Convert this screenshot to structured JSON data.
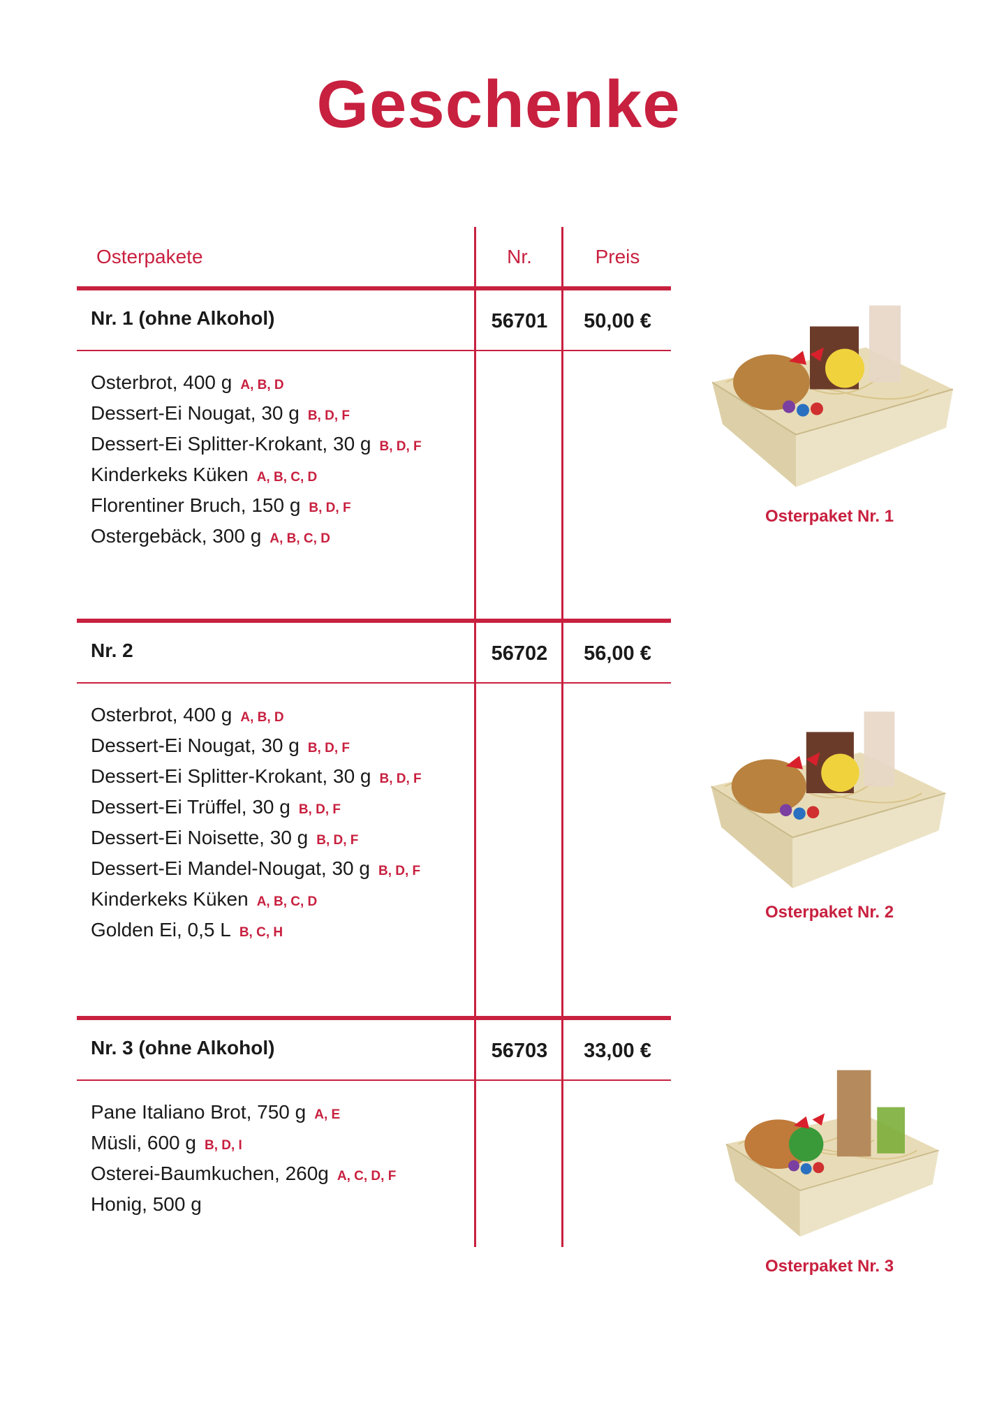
{
  "title": "Geschenke",
  "columns": {
    "name": "Osterpakete",
    "nr": "Nr.",
    "price": "Preis"
  },
  "colors": {
    "accent": "#c8203f"
  },
  "packages": [
    {
      "name": "Nr. 1 (ohne Alkohol)",
      "nr": "56701",
      "price": "50,00 €",
      "caption": "Osterpaket Nr. 1",
      "items": [
        {
          "text": "Osterbrot, 400 g",
          "allergens": "A, B, D"
        },
        {
          "text": "Dessert-Ei Nougat, 30 g",
          "allergens": "B, D, F"
        },
        {
          "text": "Dessert-Ei Splitter-Krokant, 30 g",
          "allergens": "B, D, F"
        },
        {
          "text": "Kinderkeks Küken",
          "allergens": "A, B, C, D"
        },
        {
          "text": "Florentiner Bruch, 150 g",
          "allergens": "B, D, F"
        },
        {
          "text": "Ostergebäck, 300 g",
          "allergens": "A, B, C, D"
        }
      ]
    },
    {
      "name": "Nr. 2",
      "nr": "56702",
      "price": "56,00 €",
      "caption": "Osterpaket Nr. 2",
      "items": [
        {
          "text": "Osterbrot, 400 g",
          "allergens": "A, B, D"
        },
        {
          "text": "Dessert-Ei Nougat, 30 g",
          "allergens": "B, D, F"
        },
        {
          "text": "Dessert-Ei Splitter-Krokant, 30 g",
          "allergens": "B, D, F"
        },
        {
          "text": "Dessert-Ei Trüffel, 30 g",
          "allergens": "B, D, F"
        },
        {
          "text": "Dessert-Ei Noisette, 30 g",
          "allergens": "B, D, F"
        },
        {
          "text": "Dessert-Ei Mandel-Nougat, 30 g",
          "allergens": "B, D, F"
        },
        {
          "text": "Kinderkeks Küken",
          "allergens": "A, B, C, D"
        },
        {
          "text": "Golden Ei, 0,5 L",
          "allergens": "B, C, H"
        }
      ]
    },
    {
      "name": "Nr. 3 (ohne Alkohol)",
      "nr": "56703",
      "price": "33,00 €",
      "caption": "Osterpaket Nr. 3",
      "items": [
        {
          "text": "Pane Italiano Brot, 750 g",
          "allergens": "A, E"
        },
        {
          "text": "Müsli, 600 g",
          "allergens": "B, D, I"
        },
        {
          "text": "Osterei-Baumkuchen, 260g",
          "allergens": "A, C, D, F"
        },
        {
          "text": "Honig, 500 g",
          "allergens": ""
        }
      ]
    }
  ]
}
